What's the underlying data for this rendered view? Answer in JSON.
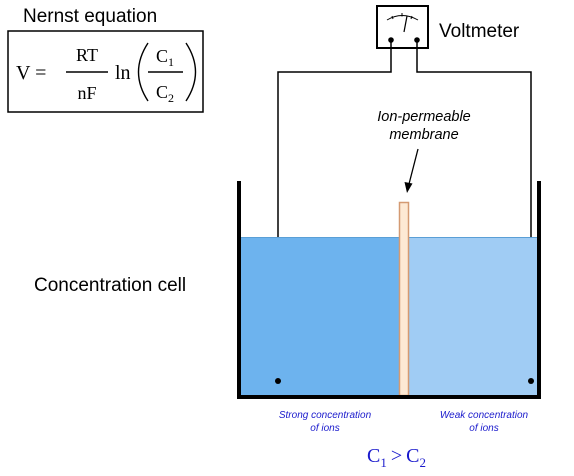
{
  "equation": {
    "title": "Nernst equation",
    "lhs": "V =",
    "numerator": "RT",
    "denominator": "nF",
    "ln": "ln",
    "c_top_base": "C",
    "c_top_sub": "1",
    "c_bottom_base": "C",
    "c_bottom_sub": "2"
  },
  "voltmeter": {
    "label": "Voltmeter",
    "icon": "voltmeter-icon"
  },
  "membrane": {
    "label_line1": "Ion-permeable",
    "label_line2": "membrane"
  },
  "cell": {
    "label": "Concentration cell",
    "left_caption_line1": "Strong concentration",
    "left_caption_line2": "of ions",
    "right_caption_line1": "Weak concentration",
    "right_caption_line2": "of ions"
  },
  "inequality": {
    "left_base": "C",
    "left_sub": "1",
    "operator": ">",
    "right_base": "C",
    "right_sub": "2"
  },
  "colors": {
    "strong_solution": "#6db3ee",
    "weak_solution": "#a0ccf4",
    "membrane_fill": "#fde9d4",
    "membrane_stroke": "#d49a72",
    "caption_blue": "#1a1acc",
    "ink": "#000000"
  }
}
